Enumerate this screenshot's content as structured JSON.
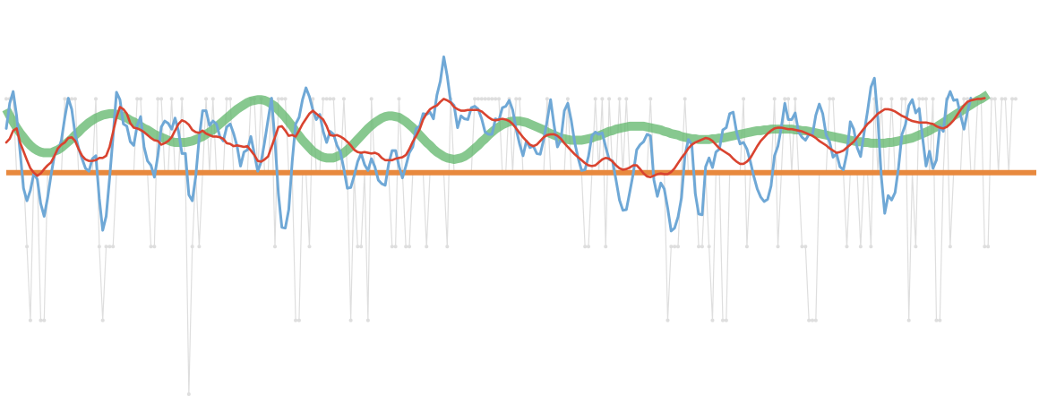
{
  "chart_data": {
    "type": "line",
    "title": "",
    "xlabel": "",
    "ylabel": "",
    "axes_visible": false,
    "grid": false,
    "legend": "none",
    "x_domain": [
      0,
      299
    ],
    "ylim": [
      -3,
      2
    ],
    "series": [
      {
        "role": "raw-samples",
        "style": "thin line with dot markers",
        "color": "#dedede",
        "values": [
          1,
          1,
          1,
          0,
          0,
          0,
          -1,
          -2,
          0,
          0,
          -2,
          -2,
          0,
          0,
          0,
          0,
          0,
          1,
          1,
          1,
          1,
          0,
          0,
          0,
          0,
          0,
          1,
          -1,
          -2,
          -1,
          -1,
          -1,
          0,
          0,
          0,
          0,
          0,
          0,
          1,
          1,
          0,
          0,
          -1,
          -1,
          1,
          1,
          0,
          0,
          1,
          0,
          0,
          1,
          0,
          -3,
          -1,
          0,
          -1,
          0,
          1,
          0,
          1,
          0,
          0,
          0,
          1,
          1,
          0,
          0,
          0,
          0,
          0,
          1,
          1,
          0,
          1,
          0,
          0,
          1,
          -1,
          1,
          1,
          1,
          0,
          0,
          -2,
          -2,
          0,
          0,
          -1,
          1,
          0,
          0,
          1,
          1,
          1,
          1,
          0,
          0,
          1,
          0,
          -2,
          0,
          -1,
          -1,
          0,
          -2,
          1,
          0,
          0,
          0,
          0,
          0,
          -1,
          -1,
          1,
          0,
          -1,
          -1,
          0,
          0,
          0,
          0,
          -1,
          0,
          0,
          0,
          0,
          0,
          -1,
          1,
          0,
          0,
          0,
          0,
          0,
          0,
          1,
          1,
          1,
          1,
          1,
          1,
          1,
          1,
          0,
          0,
          1,
          0,
          1,
          1,
          0,
          0,
          0,
          0,
          0,
          0,
          0,
          1,
          0,
          0,
          0,
          0,
          0,
          1,
          0,
          0,
          0,
          0,
          -1,
          -1,
          0,
          1,
          0,
          1,
          -1,
          1,
          0,
          0,
          1,
          0,
          1,
          0,
          0,
          0,
          0,
          0,
          0,
          1,
          0,
          0,
          0,
          0,
          -2,
          -1,
          -1,
          -1,
          0,
          1,
          0,
          0,
          0,
          -1,
          -1,
          0,
          -1,
          -2,
          0,
          0,
          -2,
          -2,
          0,
          0,
          0,
          0,
          1,
          -1,
          0,
          0,
          0,
          0,
          0,
          0,
          0,
          1,
          -1,
          0,
          1,
          1,
          0,
          1,
          0,
          -1,
          -1,
          -2,
          -2,
          -2,
          0,
          0,
          0,
          1,
          1,
          0,
          0,
          0,
          -1,
          0,
          0,
          0,
          -1,
          0,
          0,
          -1,
          1,
          0,
          1,
          0,
          0,
          1,
          0,
          0,
          1,
          1,
          -2,
          0,
          -1,
          1,
          1,
          1,
          0,
          1,
          -2,
          -2,
          0,
          1,
          -1,
          0,
          0,
          0,
          1,
          1,
          0,
          0,
          1,
          1,
          -1,
          -1,
          1,
          1,
          0,
          1,
          1,
          0,
          1,
          1
        ]
      },
      {
        "role": "smoothed-short",
        "style": "line",
        "color": "#6fa8d6",
        "values": [
          0.6,
          0.94,
          1.1,
          0.77,
          0.29,
          -0.21,
          -0.38,
          -0.24,
          -0.01,
          -0.09,
          -0.42,
          -0.59,
          -0.34,
          -0.03,
          0.24,
          0.29,
          0.44,
          0.75,
          1.01,
          0.86,
          0.52,
          0.33,
          0.19,
          0.06,
          0.02,
          0.19,
          0.23,
          -0.35,
          -0.78,
          -0.59,
          -0.07,
          0.49,
          1.09,
          0.99,
          0.66,
          0.63,
          0.42,
          0.37,
          0.64,
          0.76,
          0.35,
          0.16,
          0.1,
          -0.06,
          0.23,
          0.62,
          0.7,
          0.67,
          0.59,
          0.74,
          0.56,
          0.26,
          0.26,
          -0.3,
          -0.38,
          -0.05,
          0.47,
          0.84,
          0.84,
          0.64,
          0.7,
          0.66,
          0.49,
          0.43,
          0.62,
          0.66,
          0.53,
          0.36,
          0.09,
          0.28,
          0.31,
          0.49,
          0.26,
          0.02,
          0.15,
          0.42,
          0.72,
          1.01,
          0.43,
          -0.29,
          -0.74,
          -0.75,
          -0.5,
          0.15,
          0.66,
          0.75,
          0.99,
          1.15,
          1.03,
          0.85,
          0.72,
          0.79,
          0.56,
          0.41,
          0.56,
          0.52,
          0.37,
          0.28,
          0.05,
          -0.21,
          -0.2,
          -0.04,
          0.15,
          0.26,
          0.11,
          0.03,
          0.19,
          0.08,
          -0.1,
          -0.15,
          -0.17,
          0.12,
          0.3,
          0.3,
          0.09,
          -0.07,
          0.09,
          0.27,
          0.35,
          0.6,
          0.63,
          0.8,
          0.79,
          0.82,
          0.73,
          1.05,
          1.24,
          1.57,
          1.31,
          0.96,
          0.91,
          0.61,
          0.77,
          0.73,
          0.72,
          0.88,
          0.9,
          0.86,
          0.73,
          0.55,
          0.52,
          0.52,
          0.73,
          0.71,
          0.88,
          0.9,
          0.98,
          0.85,
          0.59,
          0.39,
          0.23,
          0.43,
          0.34,
          0.36,
          0.26,
          0.25,
          0.45,
          0.7,
          0.99,
          0.65,
          0.35,
          0.45,
          0.84,
          0.94,
          0.71,
          0.41,
          0.2,
          0.03,
          0.04,
          0.22,
          0.5,
          0.55,
          0.52,
          0.54,
          0.35,
          0.18,
          0.16,
          -0.1,
          -0.37,
          -0.51,
          -0.5,
          -0.26,
          -0.01,
          0.31,
          0.38,
          0.42,
          0.52,
          0.5,
          -0.1,
          -0.32,
          -0.14,
          -0.22,
          -0.48,
          -0.79,
          -0.75,
          -0.6,
          -0.34,
          0.23,
          0.45,
          0.38,
          -0.28,
          -0.56,
          -0.57,
          0.08,
          0.2,
          0.07,
          0.28,
          0.32,
          0.58,
          0.61,
          0.8,
          0.82,
          0.55,
          0.39,
          0.41,
          0.32,
          0.15,
          -0.05,
          -0.22,
          -0.33,
          -0.39,
          -0.36,
          -0.18,
          0.23,
          0.36,
          0.62,
          0.94,
          0.72,
          0.72,
          0.81,
          0.55,
          0.48,
          0.44,
          0.52,
          0.51,
          0.78,
          0.93,
          0.8,
          0.51,
          0.42,
          0.21,
          0.26,
          0.08,
          0.04,
          0.26,
          0.69,
          0.59,
          0.34,
          0.22,
          0.54,
          0.83,
          1.16,
          1.28,
          0.73,
          -0.05,
          -0.55,
          -0.31,
          -0.37,
          -0.27,
          0.07,
          0.52,
          0.65,
          0.91,
          0.99,
          0.81,
          0.87,
          0.47,
          0.09,
          0.29,
          0.06,
          0.17,
          0.63,
          0.56,
          0.98,
          1.1,
          0.98,
          0.99,
          0.78,
          0.59,
          0.82,
          1.01
        ]
      },
      {
        "role": "smoothed-medium",
        "style": "line",
        "color": "#d9432f",
        "values": [
          0.41,
          0.46,
          0.57,
          0.6,
          0.41,
          0.29,
          0.17,
          0.06,
          -0.0,
          -0.04,
          -0.01,
          0.05,
          0.1,
          0.14,
          0.23,
          0.33,
          0.38,
          0.41,
          0.47,
          0.48,
          0.43,
          0.32,
          0.23,
          0.18,
          0.16,
          0.16,
          0.17,
          0.2,
          0.2,
          0.23,
          0.35,
          0.55,
          0.75,
          0.89,
          0.86,
          0.8,
          0.67,
          0.61,
          0.6,
          0.58,
          0.55,
          0.51,
          0.47,
          0.44,
          0.43,
          0.38,
          0.4,
          0.43,
          0.48,
          0.57,
          0.66,
          0.71,
          0.69,
          0.65,
          0.58,
          0.55,
          0.54,
          0.57,
          0.53,
          0.51,
          0.49,
          0.49,
          0.48,
          0.46,
          0.4,
          0.39,
          0.36,
          0.37,
          0.36,
          0.35,
          0.36,
          0.3,
          0.24,
          0.16,
          0.15,
          0.18,
          0.22,
          0.35,
          0.48,
          0.62,
          0.63,
          0.57,
          0.5,
          0.51,
          0.49,
          0.57,
          0.66,
          0.73,
          0.8,
          0.84,
          0.8,
          0.76,
          0.72,
          0.63,
          0.51,
          0.5,
          0.51,
          0.49,
          0.46,
          0.42,
          0.37,
          0.31,
          0.28,
          0.27,
          0.28,
          0.27,
          0.26,
          0.27,
          0.25,
          0.2,
          0.17,
          0.17,
          0.17,
          0.19,
          0.2,
          0.21,
          0.24,
          0.32,
          0.42,
          0.5,
          0.59,
          0.72,
          0.8,
          0.86,
          0.89,
          0.91,
          0.96,
          1.0,
          0.98,
          0.95,
          0.89,
          0.86,
          0.84,
          0.84,
          0.85,
          0.85,
          0.85,
          0.85,
          0.83,
          0.79,
          0.75,
          0.72,
          0.71,
          0.72,
          0.73,
          0.72,
          0.7,
          0.66,
          0.6,
          0.54,
          0.48,
          0.43,
          0.38,
          0.36,
          0.38,
          0.43,
          0.48,
          0.51,
          0.52,
          0.52,
          0.5,
          0.46,
          0.4,
          0.35,
          0.3,
          0.25,
          0.21,
          0.17,
          0.13,
          0.1,
          0.09,
          0.1,
          0.14,
          0.18,
          0.2,
          0.19,
          0.15,
          0.1,
          0.06,
          0.04,
          0.05,
          0.07,
          0.1,
          0.1,
          0.05,
          -0.01,
          -0.05,
          -0.06,
          -0.04,
          -0.02,
          -0.01,
          -0.02,
          -0.02,
          0.01,
          0.06,
          0.13,
          0.2,
          0.26,
          0.33,
          0.38,
          0.41,
          0.43,
          0.45,
          0.47,
          0.46,
          0.43,
          0.38,
          0.33,
          0.3,
          0.27,
          0.24,
          0.19,
          0.15,
          0.12,
          0.12,
          0.15,
          0.2,
          0.28,
          0.36,
          0.43,
          0.48,
          0.53,
          0.57,
          0.6,
          0.61,
          0.61,
          0.6,
          0.59,
          0.59,
          0.58,
          0.57,
          0.56,
          0.54,
          0.52,
          0.5,
          0.47,
          0.43,
          0.4,
          0.37,
          0.33,
          0.3,
          0.27,
          0.28,
          0.3,
          0.34,
          0.38,
          0.42,
          0.48,
          0.54,
          0.6,
          0.66,
          0.7,
          0.75,
          0.8,
          0.83,
          0.86,
          0.86,
          0.85,
          0.83,
          0.8,
          0.77,
          0.75,
          0.72,
          0.7,
          0.69,
          0.68,
          0.68,
          0.68,
          0.67,
          0.66,
          0.63,
          0.61,
          0.6,
          0.62,
          0.66,
          0.71,
          0.78,
          0.85,
          0.91,
          0.96,
          0.98,
          0.99,
          1.0,
          1.0,
          1.01
        ]
      },
      {
        "role": "smoothed-long",
        "style": "thick translucent line",
        "color": "#5fb66a",
        "values": [
          0.86,
          0.77,
          0.69,
          0.61,
          0.54,
          0.48,
          0.42,
          0.37,
          0.33,
          0.3,
          0.28,
          0.27,
          0.27,
          0.27,
          0.29,
          0.31,
          0.34,
          0.38,
          0.42,
          0.46,
          0.51,
          0.55,
          0.6,
          0.64,
          0.68,
          0.71,
          0.74,
          0.76,
          0.78,
          0.79,
          0.8,
          0.8,
          0.79,
          0.78,
          0.76,
          0.74,
          0.71,
          0.69,
          0.66,
          0.63,
          0.6,
          0.58,
          0.55,
          0.52,
          0.5,
          0.48,
          0.46,
          0.44,
          0.42,
          0.41,
          0.41,
          0.41,
          0.41,
          0.42,
          0.43,
          0.45,
          0.47,
          0.49,
          0.52,
          0.55,
          0.58,
          0.62,
          0.66,
          0.7,
          0.74,
          0.78,
          0.82,
          0.86,
          0.89,
          0.92,
          0.95,
          0.97,
          0.98,
          0.99,
          0.99,
          0.98,
          0.96,
          0.93,
          0.9,
          0.85,
          0.8,
          0.75,
          0.69,
          0.63,
          0.56,
          0.5,
          0.44,
          0.39,
          0.34,
          0.29,
          0.26,
          0.23,
          0.21,
          0.2,
          0.2,
          0.2,
          0.22,
          0.24,
          0.27,
          0.31,
          0.35,
          0.4,
          0.45,
          0.5,
          0.55,
          0.6,
          0.64,
          0.68,
          0.71,
          0.74,
          0.76,
          0.77,
          0.77,
          0.76,
          0.75,
          0.72,
          0.69,
          0.65,
          0.61,
          0.56,
          0.51,
          0.46,
          0.41,
          0.37,
          0.32,
          0.28,
          0.25,
          0.22,
          0.2,
          0.19,
          0.18,
          0.19,
          0.2,
          0.22,
          0.25,
          0.29,
          0.33,
          0.37,
          0.42,
          0.46,
          0.51,
          0.55,
          0.59,
          0.62,
          0.65,
          0.67,
          0.69,
          0.7,
          0.7,
          0.7,
          0.69,
          0.68,
          0.66,
          0.64,
          0.62,
          0.6,
          0.58,
          0.55,
          0.53,
          0.51,
          0.49,
          0.47,
          0.46,
          0.45,
          0.44,
          0.44,
          0.44,
          0.44,
          0.45,
          0.46,
          0.47,
          0.49,
          0.5,
          0.52,
          0.54,
          0.56,
          0.57,
          0.59,
          0.6,
          0.61,
          0.62,
          0.63,
          0.63,
          0.63,
          0.63,
          0.63,
          0.62,
          0.61,
          0.6,
          0.59,
          0.58,
          0.56,
          0.55,
          0.53,
          0.52,
          0.51,
          0.49,
          0.48,
          0.47,
          0.46,
          0.46,
          0.45,
          0.45,
          0.45,
          0.45,
          0.46,
          0.46,
          0.47,
          0.47,
          0.48,
          0.49,
          0.5,
          0.51,
          0.52,
          0.53,
          0.54,
          0.55,
          0.56,
          0.57,
          0.57,
          0.58,
          0.58,
          0.59,
          0.59,
          0.59,
          0.59,
          0.59,
          0.59,
          0.59,
          0.58,
          0.58,
          0.57,
          0.57,
          0.56,
          0.55,
          0.54,
          0.53,
          0.52,
          0.51,
          0.5,
          0.49,
          0.48,
          0.47,
          0.46,
          0.45,
          0.44,
          0.43,
          0.42,
          0.42,
          0.41,
          0.41,
          0.4,
          0.4,
          0.4,
          0.4,
          0.4,
          0.41,
          0.41,
          0.42,
          0.43,
          0.44,
          0.45,
          0.46,
          0.47,
          0.49,
          0.51,
          0.53,
          0.55,
          0.57,
          0.6,
          0.62,
          0.65,
          0.68,
          0.71,
          0.74,
          0.77,
          0.8,
          0.83,
          0.86,
          0.89,
          0.92,
          0.95,
          0.98,
          1.0,
          1.03,
          1.06
        ]
      },
      {
        "role": "baseline",
        "style": "thick horizontal line",
        "color": "#e8893e",
        "constant": 0
      }
    ]
  }
}
